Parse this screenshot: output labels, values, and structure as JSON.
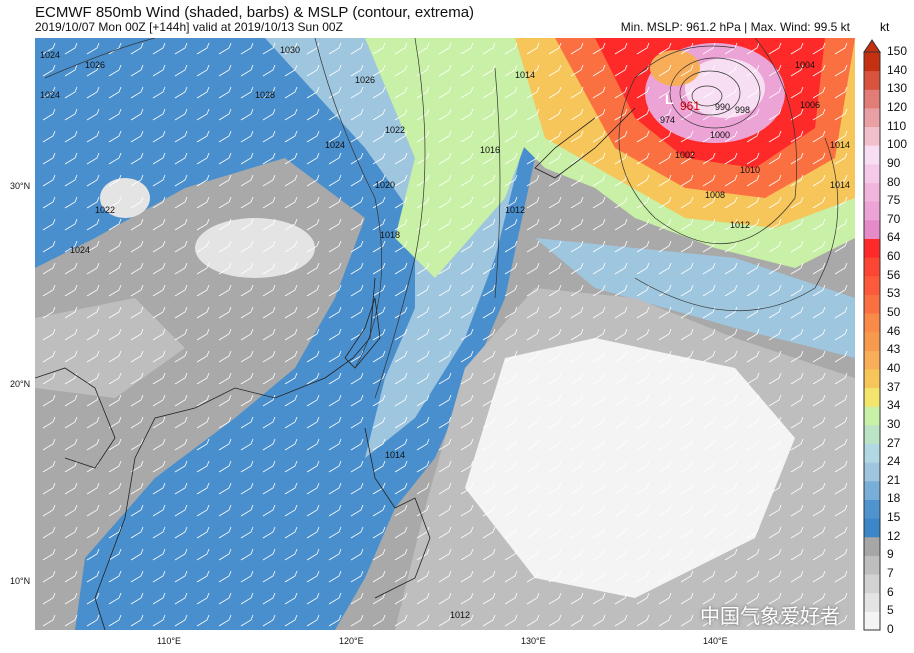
{
  "title": "ECMWF 850mb Wind (shaded, barbs) & MSLP (contour, extrema)",
  "subtitle": "2019/10/07 Mon 00Z [+144h] valid at 2019/10/13 Sun 00Z",
  "stats": "Min. MSLP: 961.2 hPa | Max. Wind: 99.5 kt",
  "colorbar": {
    "unit": "kt",
    "levels": [
      "0",
      "5",
      "6",
      "7",
      "9",
      "12",
      "15",
      "18",
      "21",
      "24",
      "27",
      "30",
      "34",
      "37",
      "40",
      "43",
      "46",
      "50",
      "53",
      "56",
      "60",
      "64",
      "70",
      "75",
      "80",
      "90",
      "100",
      "110",
      "120",
      "130",
      "140",
      "150"
    ],
    "colors": [
      "#f4f4f4",
      "#e4e4e4",
      "#d2d2d2",
      "#bebebe",
      "#a6a6a6",
      "#3a86c8",
      "#4f94cf",
      "#79aed8",
      "#9fc6df",
      "#b2d8e4",
      "#bbe3c6",
      "#c8f0a6",
      "#f3e56c",
      "#f7c65a",
      "#f8ae58",
      "#f89a4e",
      "#fa8a48",
      "#fb7040",
      "#fc5a3a",
      "#fc4634",
      "#fe2a2a",
      "#e68ac8",
      "#eca3d6",
      "#f0b6de",
      "#f4cae8",
      "#f8def2",
      "#f2c0cc",
      "#e9a0a4",
      "#e27c76",
      "#d8533e",
      "#c43010"
    ]
  },
  "axes": {
    "lon_ticks": [
      "110°E",
      "120°E",
      "130°E",
      "140°E"
    ],
    "lat_ticks": [
      "30°N",
      "20°N",
      "10°N"
    ]
  },
  "contour_labels": [
    "1024",
    "1026",
    "1030",
    "1024",
    "1026",
    "1028",
    "1022",
    "1024",
    "1022",
    "1024",
    "1020",
    "1018",
    "1016",
    "1014",
    "1012",
    "1014",
    "1012",
    "1010",
    "1008",
    "1004",
    "1006",
    "1002",
    "1000",
    "998",
    "990",
    "974",
    "1014",
    "1014",
    "1012"
  ],
  "low_center": {
    "label": "L",
    "value": "961"
  },
  "watermark": "中国气象爱好者"
}
